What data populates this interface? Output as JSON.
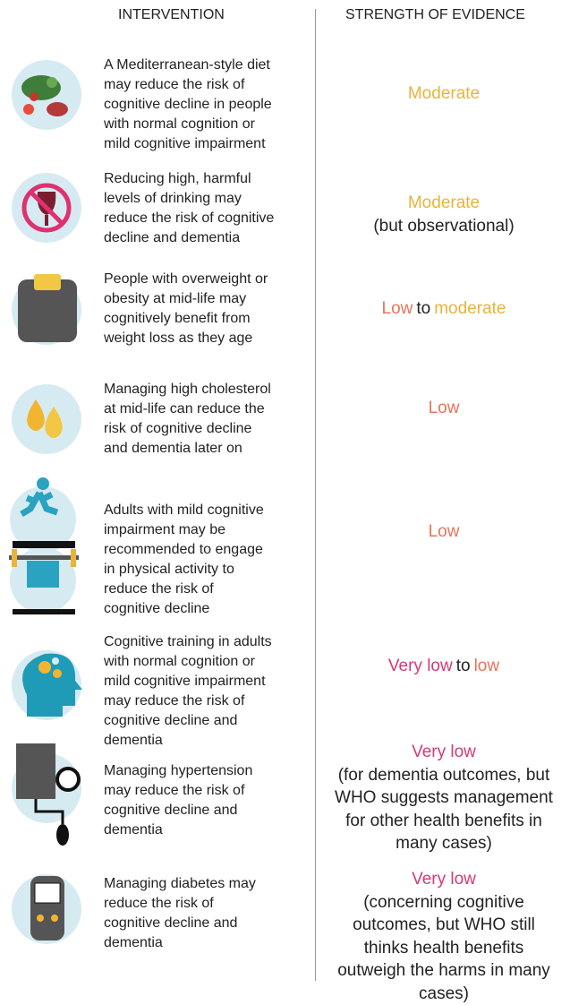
{
  "header": {
    "columns": [
      "INTERVENTION",
      "STRENGTH OF EVIDENCE"
    ]
  },
  "rows": [
    {
      "intervention": [
        "A Mediterranean-style diet",
        "may reduce the risk of",
        "cognitive decline in people",
        "with normal cognition or",
        "mild cognitive impairment"
      ],
      "evidence": [
        {
          "text": "Moderate",
          "color": "#e9b33c"
        }
      ],
      "note": []
    },
    {
      "intervention": [
        "Reducing high, harmful",
        "levels of drinking may",
        "reduce the risk of cognitive",
        "decline and dementia"
      ],
      "evidence": [
        {
          "text": "Moderate",
          "color": "#e9b33c"
        }
      ],
      "note": [
        "(but observational)"
      ]
    },
    {
      "intervention": [
        "People with overweight or",
        "obesity at mid-life may",
        "cognitively  benefit from",
        "weight loss as they age"
      ],
      "evidence": [
        {
          "text": "Low",
          "color": "#e8745a"
        },
        {
          "text": "to",
          "color": "#222222"
        },
        {
          "text": "moderate",
          "color": "#e9b33c"
        }
      ],
      "note": []
    },
    {
      "intervention": [
        "Managing high cholesterol",
        "at mid-life can reduce the",
        "risk of cognitive decline",
        "and dementia later on"
      ],
      "evidence": [
        {
          "text": "Low",
          "color": "#e8745a"
        }
      ],
      "note": []
    },
    {
      "intervention": [
        "Adults with mild cognitive",
        "impairment may be",
        "recommended to engage",
        "in physical activity to",
        "reduce the risk of",
        "cognitive decline"
      ],
      "evidence": [
        {
          "text": "Low",
          "color": "#e8745a"
        }
      ],
      "note": []
    },
    {
      "intervention": [
        "Cognitive training in adults",
        "with normal cognition or",
        "mild cognitive impairment",
        "may reduce the risk of",
        "cognitive decline and",
        "dementia"
      ],
      "evidence": [
        {
          "text": "Very low",
          "color": "#d63a75"
        },
        {
          "text": "to",
          "color": "#222222"
        },
        {
          "text": "low",
          "color": "#e8745a"
        }
      ],
      "note": []
    },
    {
      "intervention": [
        "Managing hypertension",
        "may reduce the risk of",
        "cognitive decline and",
        "dementia"
      ],
      "evidence": [
        {
          "text": "Very low",
          "color": "#d63a75"
        }
      ],
      "note": [
        "(for dementia outcomes, but",
        "WHO suggests management",
        "for other health benefits in",
        "many cases)"
      ]
    },
    {
      "intervention": [
        "Managing diabetes may",
        "reduce the risk of",
        "cognitive decline and",
        "dementia"
      ],
      "evidence": [
        {
          "text": "Very low",
          "color": "#d63a75"
        }
      ],
      "note": [
        "(concerning cognitive",
        "outcomes, but WHO still",
        "thinks health benefits",
        "outweigh the harms in many",
        "cases)"
      ]
    }
  ]
}
